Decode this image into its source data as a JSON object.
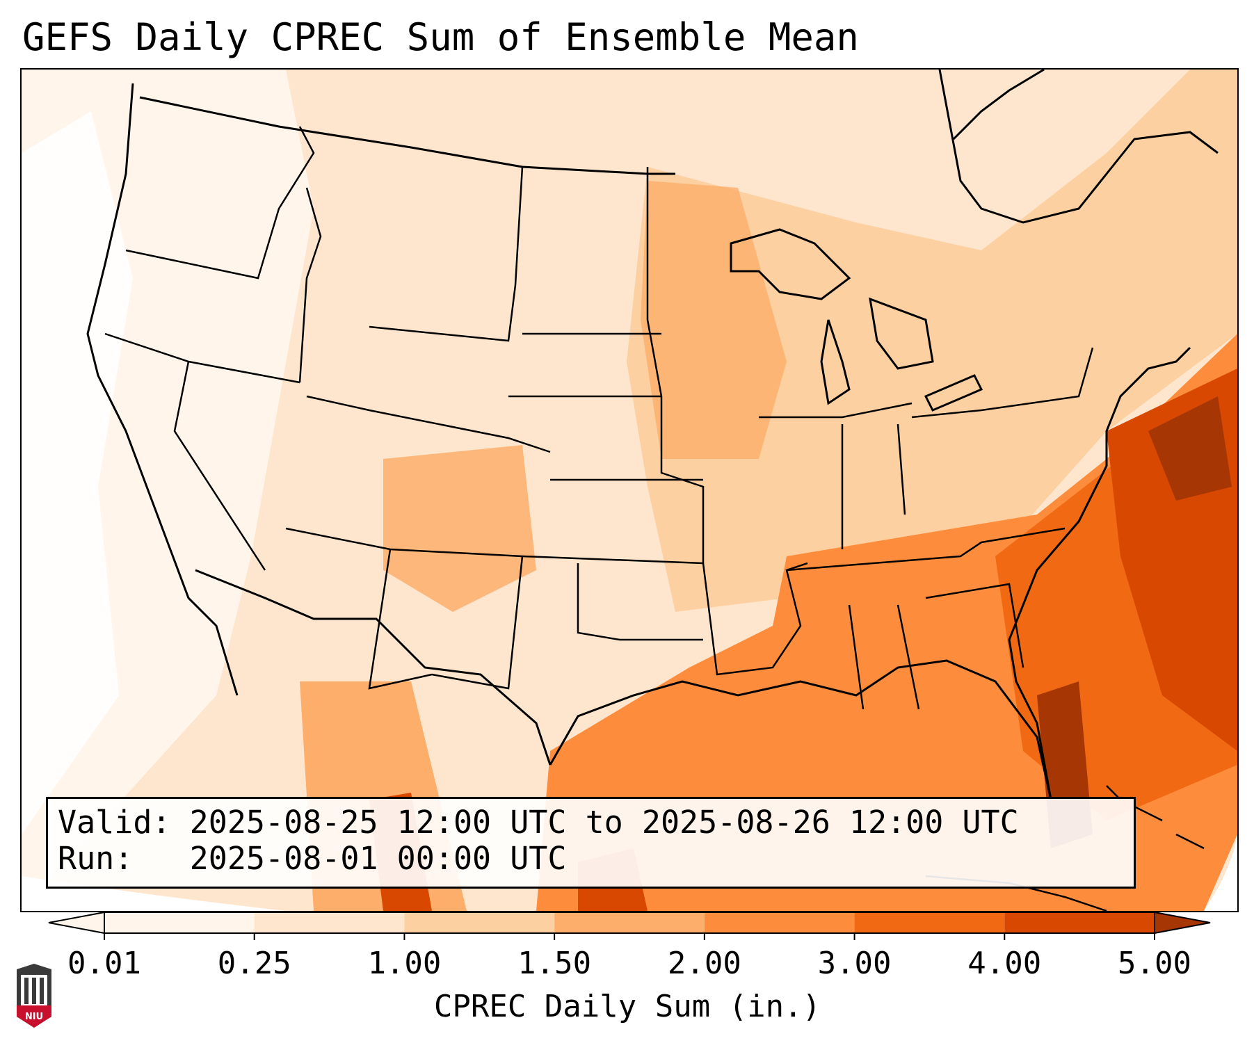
{
  "title": "GEFS Daily CPREC Sum of Ensemble Mean",
  "info": {
    "valid_line": "Valid: 2025-08-25 12:00 UTC to 2025-08-26 12:00 UTC",
    "run_line": "Run:   2025-08-01 00:00 UTC"
  },
  "colorbar": {
    "label": "CPREC Daily Sum (in.)",
    "ticks": [
      "0.01",
      "0.25",
      "1.00",
      "1.50",
      "2.00",
      "3.00",
      "4.00",
      "5.00"
    ],
    "tick_values": [
      0.01,
      0.25,
      1.0,
      1.5,
      2.0,
      3.0,
      4.0,
      5.0
    ],
    "colors": [
      "#fff5eb",
      "#fee6ce",
      "#fdd0a2",
      "#fdae6b",
      "#fd8d3c",
      "#f16913",
      "#d94801",
      "#a63603"
    ],
    "extend": "both"
  },
  "map": {
    "region": "CONUS",
    "field": "CPREC",
    "colors": {
      "border": "#000000",
      "background": "#fff5eb",
      "offdomain": "#ffffff"
    }
  },
  "logo": {
    "text": "NIU",
    "colors": {
      "shield": "#c8102e",
      "tower": "#3a3a3a"
    }
  }
}
